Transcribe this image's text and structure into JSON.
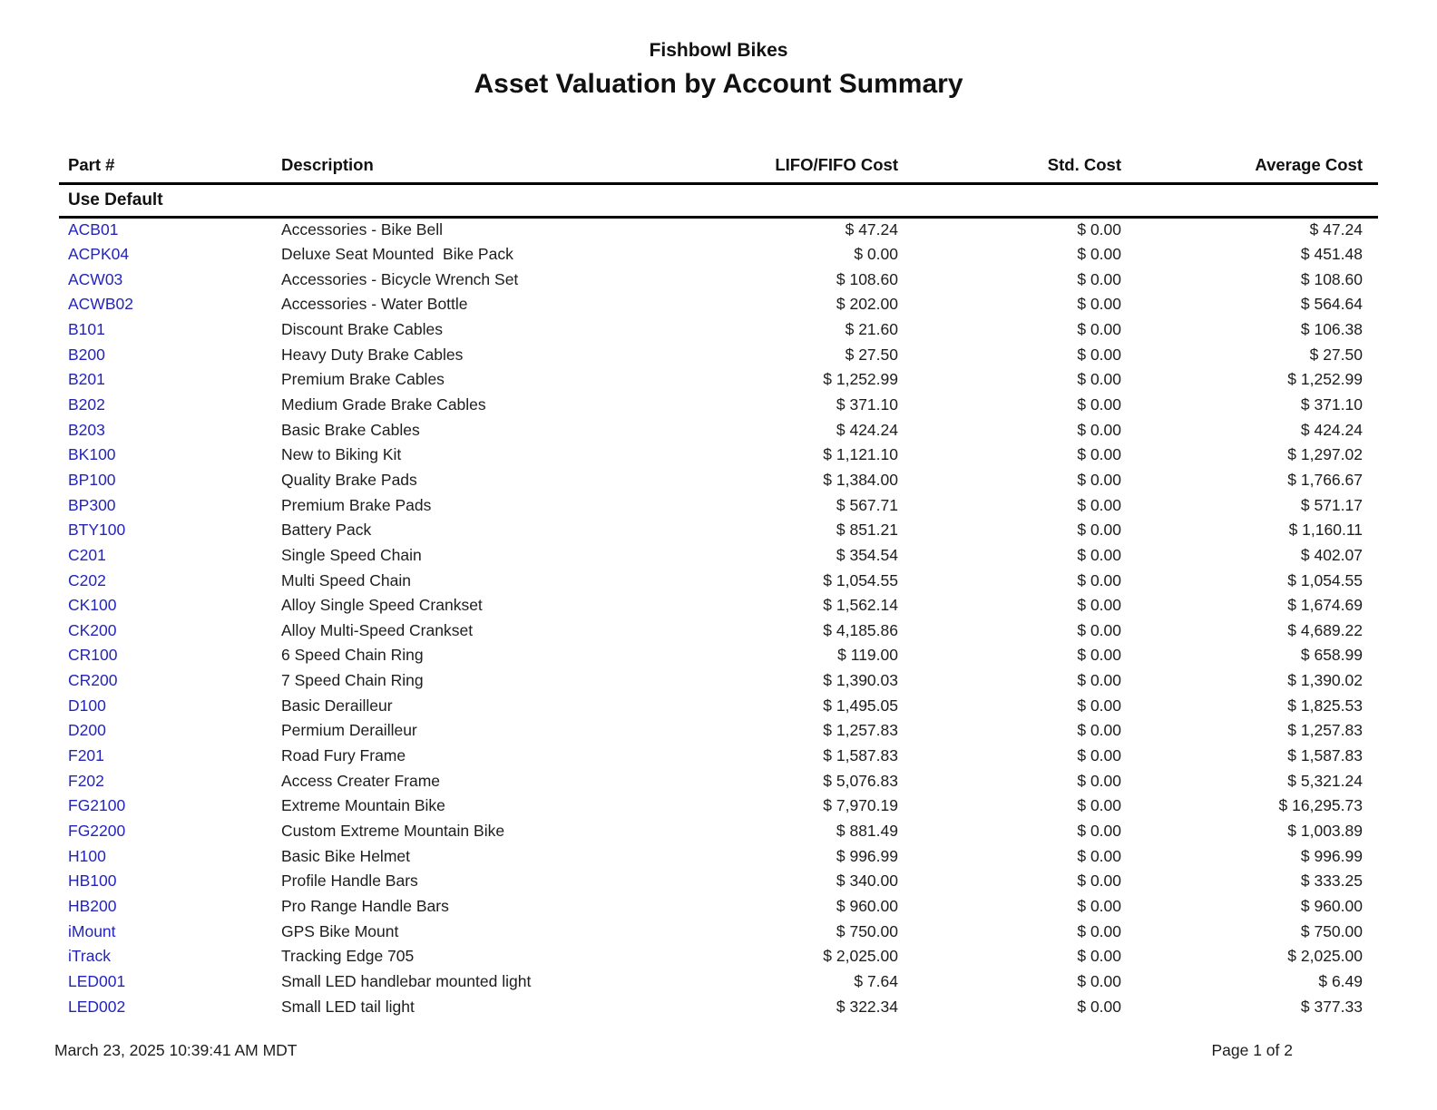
{
  "report": {
    "company": "Fishbowl Bikes",
    "title": "Asset Valuation by Account Summary"
  },
  "table": {
    "columns": {
      "part": "Part #",
      "description": "Description",
      "lifo_fifo": "LIFO/FIFO Cost",
      "std": "Std. Cost",
      "avg": "Average Cost"
    },
    "section": "Use Default",
    "rows": [
      {
        "part": "ACB01",
        "description": "Accessories - Bike Bell",
        "lifo_fifo": "$ 47.24",
        "std": "$ 0.00",
        "avg": "$ 47.24"
      },
      {
        "part": "ACPK04",
        "description": "Deluxe Seat Mounted  Bike Pack",
        "lifo_fifo": "$ 0.00",
        "std": "$ 0.00",
        "avg": "$ 451.48"
      },
      {
        "part": "ACW03",
        "description": "Accessories - Bicycle Wrench Set",
        "lifo_fifo": "$ 108.60",
        "std": "$ 0.00",
        "avg": "$ 108.60"
      },
      {
        "part": "ACWB02",
        "description": "Accessories - Water Bottle",
        "lifo_fifo": "$ 202.00",
        "std": "$ 0.00",
        "avg": "$ 564.64"
      },
      {
        "part": "B101",
        "description": "Discount Brake Cables",
        "lifo_fifo": "$ 21.60",
        "std": "$ 0.00",
        "avg": "$ 106.38"
      },
      {
        "part": "B200",
        "description": "Heavy Duty Brake Cables",
        "lifo_fifo": "$ 27.50",
        "std": "$ 0.00",
        "avg": "$ 27.50"
      },
      {
        "part": "B201",
        "description": "Premium Brake Cables",
        "lifo_fifo": "$ 1,252.99",
        "std": "$ 0.00",
        "avg": "$ 1,252.99"
      },
      {
        "part": "B202",
        "description": "Medium Grade Brake Cables",
        "lifo_fifo": "$ 371.10",
        "std": "$ 0.00",
        "avg": "$ 371.10"
      },
      {
        "part": "B203",
        "description": "Basic Brake Cables",
        "lifo_fifo": "$ 424.24",
        "std": "$ 0.00",
        "avg": "$ 424.24"
      },
      {
        "part": "BK100",
        "description": "New to Biking Kit",
        "lifo_fifo": "$ 1,121.10",
        "std": "$ 0.00",
        "avg": "$ 1,297.02"
      },
      {
        "part": "BP100",
        "description": "Quality Brake Pads",
        "lifo_fifo": "$ 1,384.00",
        "std": "$ 0.00",
        "avg": "$ 1,766.67"
      },
      {
        "part": "BP300",
        "description": "Premium Brake Pads",
        "lifo_fifo": "$ 567.71",
        "std": "$ 0.00",
        "avg": "$ 571.17"
      },
      {
        "part": "BTY100",
        "description": "Battery Pack",
        "lifo_fifo": "$ 851.21",
        "std": "$ 0.00",
        "avg": "$ 1,160.11"
      },
      {
        "part": "C201",
        "description": "Single Speed Chain",
        "lifo_fifo": "$ 354.54",
        "std": "$ 0.00",
        "avg": "$ 402.07"
      },
      {
        "part": "C202",
        "description": "Multi Speed Chain",
        "lifo_fifo": "$ 1,054.55",
        "std": "$ 0.00",
        "avg": "$ 1,054.55"
      },
      {
        "part": "CK100",
        "description": "Alloy Single Speed Crankset",
        "lifo_fifo": "$ 1,562.14",
        "std": "$ 0.00",
        "avg": "$ 1,674.69"
      },
      {
        "part": "CK200",
        "description": "Alloy Multi-Speed Crankset",
        "lifo_fifo": "$ 4,185.86",
        "std": "$ 0.00",
        "avg": "$ 4,689.22"
      },
      {
        "part": "CR100",
        "description": "6 Speed Chain Ring",
        "lifo_fifo": "$ 119.00",
        "std": "$ 0.00",
        "avg": "$ 658.99"
      },
      {
        "part": "CR200",
        "description": "7 Speed Chain Ring",
        "lifo_fifo": "$ 1,390.03",
        "std": "$ 0.00",
        "avg": "$ 1,390.02"
      },
      {
        "part": "D100",
        "description": "Basic Derailleur",
        "lifo_fifo": "$ 1,495.05",
        "std": "$ 0.00",
        "avg": "$ 1,825.53"
      },
      {
        "part": "D200",
        "description": "Permium Derailleur",
        "lifo_fifo": "$ 1,257.83",
        "std": "$ 0.00",
        "avg": "$ 1,257.83"
      },
      {
        "part": "F201",
        "description": "Road Fury Frame",
        "lifo_fifo": "$ 1,587.83",
        "std": "$ 0.00",
        "avg": "$ 1,587.83"
      },
      {
        "part": "F202",
        "description": "Access Creater Frame",
        "lifo_fifo": "$ 5,076.83",
        "std": "$ 0.00",
        "avg": "$ 5,321.24"
      },
      {
        "part": "FG2100",
        "description": "Extreme Mountain Bike",
        "lifo_fifo": "$ 7,970.19",
        "std": "$ 0.00",
        "avg": "$ 16,295.73"
      },
      {
        "part": "FG2200",
        "description": "Custom Extreme Mountain Bike",
        "lifo_fifo": "$ 881.49",
        "std": "$ 0.00",
        "avg": "$ 1,003.89"
      },
      {
        "part": "H100",
        "description": "Basic Bike Helmet",
        "lifo_fifo": "$ 996.99",
        "std": "$ 0.00",
        "avg": "$ 996.99"
      },
      {
        "part": "HB100",
        "description": "Profile Handle Bars",
        "lifo_fifo": "$ 340.00",
        "std": "$ 0.00",
        "avg": "$ 333.25"
      },
      {
        "part": "HB200",
        "description": "Pro Range Handle Bars",
        "lifo_fifo": "$ 960.00",
        "std": "$ 0.00",
        "avg": "$ 960.00"
      },
      {
        "part": "iMount",
        "description": "GPS Bike Mount",
        "lifo_fifo": "$ 750.00",
        "std": "$ 0.00",
        "avg": "$ 750.00"
      },
      {
        "part": "iTrack",
        "description": "Tracking Edge 705",
        "lifo_fifo": "$ 2,025.00",
        "std": "$ 0.00",
        "avg": "$ 2,025.00"
      },
      {
        "part": "LED001",
        "description": "Small LED handlebar mounted light",
        "lifo_fifo": "$ 7.64",
        "std": "$ 0.00",
        "avg": "$ 6.49"
      },
      {
        "part": "LED002",
        "description": "Small LED tail light",
        "lifo_fifo": "$ 322.34",
        "std": "$ 0.00",
        "avg": "$ 377.33"
      }
    ]
  },
  "footer": {
    "timestamp": "March 23, 2025 10:39:41 AM MDT",
    "page": "Page 1 of 2"
  },
  "colors": {
    "part_link": "#2424bb",
    "text": "#1d1d1d",
    "rule": "#000000"
  }
}
